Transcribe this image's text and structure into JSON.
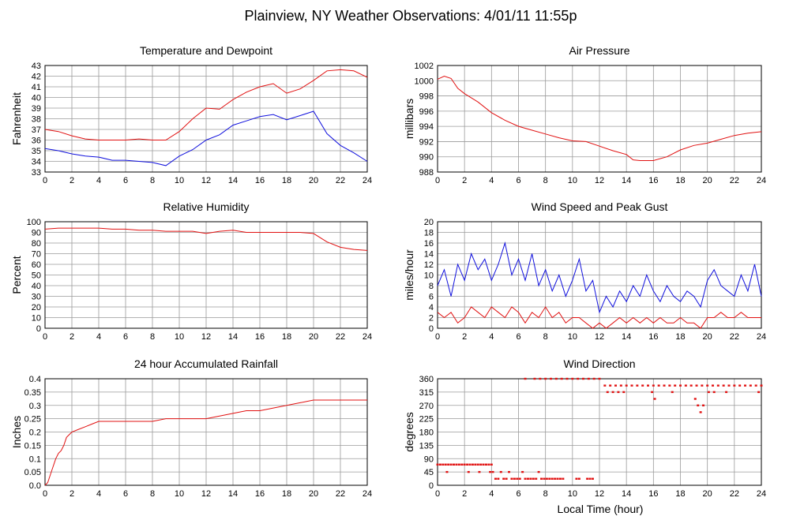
{
  "page_title": "Plainview, NY Weather Observations: 4/01/11 11:55p",
  "bottom_xlabel": "Local Time (hour)",
  "colors": {
    "red": "#e11111",
    "blue": "#1010dd",
    "grid": "#9a9a9a",
    "frame": "#000000"
  },
  "chart_data": [
    {
      "id": "temp",
      "type": "line",
      "title": "Temperature and Dewpoint",
      "xlabel": "",
      "ylabel": "Fahrenheit",
      "xlim": [
        0,
        24
      ],
      "ylim": [
        33,
        43
      ],
      "xticks": [
        0,
        2,
        4,
        6,
        8,
        10,
        12,
        14,
        16,
        18,
        20,
        22,
        24
      ],
      "yticks": [
        33,
        34,
        35,
        36,
        37,
        38,
        39,
        40,
        41,
        42,
        43
      ],
      "grid": true,
      "series": [
        {
          "color": "#e11111",
          "style": "line",
          "x": [
            0,
            1,
            2,
            3,
            4,
            5,
            6,
            7,
            8,
            9,
            10,
            11,
            12,
            13,
            14,
            15,
            16,
            17,
            18,
            19,
            20,
            21,
            22,
            23,
            24
          ],
          "y": [
            37.0,
            36.8,
            36.4,
            36.1,
            36.0,
            36.0,
            36.0,
            36.1,
            36.0,
            36.0,
            36.8,
            38.0,
            39.0,
            38.9,
            39.8,
            40.5,
            41.0,
            41.3,
            40.4,
            40.8,
            41.6,
            42.5,
            42.6,
            42.5,
            41.9
          ]
        },
        {
          "color": "#1010dd",
          "style": "line",
          "x": [
            0,
            1,
            2,
            3,
            4,
            5,
            6,
            7,
            8,
            9,
            10,
            11,
            12,
            13,
            14,
            15,
            16,
            17,
            18,
            19,
            20,
            21,
            22,
            23,
            24
          ],
          "y": [
            35.2,
            35.0,
            34.7,
            34.5,
            34.4,
            34.1,
            34.1,
            34.0,
            33.9,
            33.6,
            34.5,
            35.1,
            36.0,
            36.5,
            37.4,
            37.8,
            38.2,
            38.4,
            37.9,
            38.3,
            38.7,
            36.6,
            35.5,
            34.8,
            34.0
          ]
        }
      ]
    },
    {
      "id": "pressure",
      "type": "line",
      "title": "Air Pressure",
      "xlabel": "",
      "ylabel": "millibars",
      "xlim": [
        0,
        24
      ],
      "ylim": [
        988,
        1002
      ],
      "xticks": [
        0,
        2,
        4,
        6,
        8,
        10,
        12,
        14,
        16,
        18,
        20,
        22,
        24
      ],
      "yticks": [
        988,
        990,
        992,
        994,
        996,
        998,
        1000,
        1002
      ],
      "grid": true,
      "series": [
        {
          "color": "#e11111",
          "style": "line",
          "x": [
            0,
            0.5,
            1,
            1.5,
            2,
            3,
            4,
            5,
            6,
            7,
            8,
            9,
            10,
            11,
            12,
            13,
            14,
            14.5,
            15,
            16,
            17,
            18,
            19,
            20,
            21,
            22,
            23,
            24
          ],
          "y": [
            1000.2,
            1000.6,
            1000.3,
            999.0,
            998.3,
            997.2,
            995.8,
            994.8,
            994.0,
            993.5,
            993.0,
            992.5,
            992.1,
            992.0,
            991.4,
            990.8,
            990.3,
            989.6,
            989.5,
            989.5,
            990.0,
            990.9,
            991.5,
            991.8,
            992.3,
            992.8,
            993.1,
            993.3
          ]
        }
      ]
    },
    {
      "id": "humidity",
      "type": "line",
      "title": "Relative Humidity",
      "xlabel": "",
      "ylabel": "Percent",
      "xlim": [
        0,
        24
      ],
      "ylim": [
        0,
        100
      ],
      "xticks": [
        0,
        2,
        4,
        6,
        8,
        10,
        12,
        14,
        16,
        18,
        20,
        22,
        24
      ],
      "yticks": [
        0,
        10,
        20,
        30,
        40,
        50,
        60,
        70,
        80,
        90,
        100
      ],
      "grid": true,
      "series": [
        {
          "color": "#e11111",
          "style": "line",
          "x": [
            0,
            1,
            2,
            3,
            4,
            5,
            6,
            7,
            8,
            9,
            10,
            11,
            12,
            13,
            14,
            15,
            16,
            17,
            18,
            19,
            20,
            21,
            22,
            23,
            24
          ],
          "y": [
            93,
            94,
            94,
            94,
            94,
            93,
            93,
            92,
            92,
            91,
            91,
            91,
            89,
            91,
            92,
            90,
            90,
            90,
            90,
            90,
            89,
            81,
            76,
            74,
            73
          ]
        }
      ]
    },
    {
      "id": "wind",
      "type": "line",
      "title": "Wind Speed and Peak Gust",
      "xlabel": "",
      "ylabel": "miles/hour",
      "xlim": [
        0,
        24
      ],
      "ylim": [
        0,
        20
      ],
      "xticks": [
        0,
        2,
        4,
        6,
        8,
        10,
        12,
        14,
        16,
        18,
        20,
        22,
        24
      ],
      "yticks": [
        0,
        2,
        4,
        6,
        8,
        10,
        12,
        14,
        16,
        18,
        20
      ],
      "grid": true,
      "series": [
        {
          "color": "#1010dd",
          "style": "line",
          "x": [
            0,
            0.5,
            1,
            1.5,
            2,
            2.5,
            3,
            3.5,
            4,
            4.5,
            5,
            5.5,
            6,
            6.5,
            7,
            7.5,
            8,
            8.5,
            9,
            9.5,
            10,
            10.5,
            11,
            11.5,
            12,
            12.5,
            13,
            13.5,
            14,
            14.5,
            15,
            15.5,
            16,
            16.5,
            17,
            17.5,
            18,
            18.5,
            19,
            19.5,
            20,
            20.5,
            21,
            21.5,
            22,
            22.5,
            23,
            23.5,
            24
          ],
          "y": [
            8,
            11,
            6,
            12,
            9,
            14,
            11,
            13,
            9,
            12,
            16,
            10,
            13,
            9,
            14,
            8,
            11,
            7,
            10,
            6,
            9,
            13,
            7,
            9,
            3,
            6,
            4,
            7,
            5,
            8,
            6,
            10,
            7,
            5,
            8,
            6,
            5,
            7,
            6,
            4,
            9,
            11,
            8,
            7,
            6,
            10,
            7,
            12,
            6
          ]
        },
        {
          "color": "#e11111",
          "style": "line",
          "x": [
            0,
            0.5,
            1,
            1.5,
            2,
            2.5,
            3,
            3.5,
            4,
            4.5,
            5,
            5.5,
            6,
            6.5,
            7,
            7.5,
            8,
            8.5,
            9,
            9.5,
            10,
            10.5,
            11,
            11.5,
            12,
            12.5,
            13,
            13.5,
            14,
            14.5,
            15,
            15.5,
            16,
            16.5,
            17,
            17.5,
            18,
            18.5,
            19,
            19.5,
            20,
            20.5,
            21,
            21.5,
            22,
            22.5,
            23,
            23.5,
            24
          ],
          "y": [
            3,
            2,
            3,
            1,
            2,
            4,
            3,
            2,
            4,
            3,
            2,
            4,
            3,
            1,
            3,
            2,
            4,
            2,
            3,
            1,
            2,
            2,
            1,
            0,
            1,
            0,
            1,
            2,
            1,
            2,
            1,
            2,
            1,
            2,
            1,
            1,
            2,
            1,
            1,
            0,
            2,
            2,
            3,
            2,
            2,
            3,
            2,
            2,
            2
          ]
        }
      ]
    },
    {
      "id": "rain",
      "type": "line",
      "title": "24 hour Accumulated Rainfall",
      "xlabel": "",
      "ylabel": "Inches",
      "xlim": [
        0,
        24
      ],
      "ylim": [
        0,
        0.4
      ],
      "xticks": [
        0,
        2,
        4,
        6,
        8,
        10,
        12,
        14,
        16,
        18,
        20,
        22,
        24
      ],
      "yticks": [
        "0.0",
        "0.05",
        "0.1",
        "0.15",
        "0.2",
        "0.25",
        "0.3",
        "0.35",
        "0.4"
      ],
      "grid": true,
      "series": [
        {
          "color": "#e11111",
          "style": "line",
          "x": [
            0,
            0.2,
            0.4,
            0.6,
            0.8,
            1.0,
            1.2,
            1.4,
            1.6,
            1.8,
            2.0,
            2.5,
            3.0,
            3.5,
            4.0,
            5.0,
            6.0,
            7.0,
            8.0,
            9.0,
            10.0,
            11.0,
            12.0,
            13.0,
            14.0,
            15.0,
            16.0,
            17.0,
            18.0,
            19.0,
            20.0,
            22.0,
            24.0
          ],
          "y": [
            0,
            0.01,
            0.04,
            0.07,
            0.1,
            0.12,
            0.13,
            0.15,
            0.18,
            0.19,
            0.2,
            0.21,
            0.22,
            0.23,
            0.24,
            0.24,
            0.24,
            0.24,
            0.24,
            0.25,
            0.25,
            0.25,
            0.25,
            0.26,
            0.27,
            0.28,
            0.28,
            0.29,
            0.3,
            0.31,
            0.32,
            0.32,
            0.32
          ]
        }
      ]
    },
    {
      "id": "winddir",
      "type": "scatter",
      "title": "Wind Direction",
      "xlabel": "Local Time (hour)",
      "ylabel": "degrees",
      "xlim": [
        0,
        24
      ],
      "ylim": [
        0,
        360
      ],
      "xticks": [
        0,
        2,
        4,
        6,
        8,
        10,
        12,
        14,
        16,
        18,
        20,
        22,
        24
      ],
      "yticks": [
        0,
        45,
        90,
        135,
        180,
        225,
        270,
        315,
        360
      ],
      "grid": true,
      "series": [
        {
          "color": "#e11111",
          "style": "points",
          "x": [
            0.0,
            0.2,
            0.4,
            0.6,
            0.8,
            1.0,
            1.2,
            1.4,
            1.6,
            1.8,
            2.0,
            2.2,
            2.4,
            2.6,
            2.8,
            3.0,
            3.2,
            3.4,
            3.6,
            3.8,
            4.0,
            0.7,
            2.3,
            3.1,
            3.9,
            4.1,
            4.3,
            4.5,
            4.7,
            4.9,
            5.1,
            5.3,
            5.5,
            5.7,
            5.9,
            6.1,
            6.3,
            6.5,
            6.7,
            6.9,
            7.1,
            7.3,
            7.5,
            7.7,
            7.9,
            8.1,
            8.3,
            8.5,
            8.7,
            8.9,
            9.1,
            9.3,
            10.3,
            10.5,
            11.1,
            11.3,
            11.5,
            6.5,
            7.2,
            7.6,
            8.0,
            8.4,
            8.8,
            9.2,
            9.6,
            10.0,
            10.4,
            10.8,
            11.2,
            11.6,
            12.0,
            12.4,
            12.8,
            13.2,
            13.6,
            14.0,
            14.4,
            14.8,
            15.2,
            15.6,
            16.0,
            16.4,
            16.8,
            17.2,
            17.6,
            18.0,
            18.4,
            18.8,
            19.2,
            19.6,
            20.0,
            20.4,
            20.8,
            21.2,
            21.6,
            22.0,
            22.4,
            22.8,
            23.2,
            23.6,
            24.0,
            12.6,
            13.0,
            13.4,
            13.8,
            15.9,
            16.1,
            17.4,
            19.1,
            19.3,
            19.5,
            19.7,
            20.1,
            20.5,
            21.4,
            23.8
          ],
          "y": [
            70,
            70,
            70,
            70,
            70,
            70,
            70,
            70,
            70,
            70,
            70,
            70,
            70,
            70,
            70,
            70,
            70,
            70,
            70,
            70,
            70,
            45,
            45,
            45,
            45,
            45,
            22,
            22,
            45,
            22,
            22,
            45,
            22,
            22,
            22,
            22,
            45,
            22,
            22,
            22,
            22,
            22,
            45,
            22,
            22,
            22,
            22,
            22,
            22,
            22,
            22,
            22,
            22,
            22,
            22,
            22,
            22,
            360,
            360,
            360,
            360,
            360,
            360,
            360,
            360,
            360,
            360,
            360,
            360,
            360,
            360,
            337,
            337,
            337,
            337,
            337,
            337,
            337,
            337,
            337,
            337,
            337,
            337,
            337,
            337,
            337,
            337,
            337,
            337,
            337,
            337,
            337,
            337,
            337,
            337,
            337,
            337,
            337,
            337,
            337,
            337,
            315,
            315,
            315,
            315,
            315,
            292,
            315,
            292,
            270,
            247,
            270,
            315,
            315,
            315,
            315
          ]
        }
      ]
    }
  ]
}
